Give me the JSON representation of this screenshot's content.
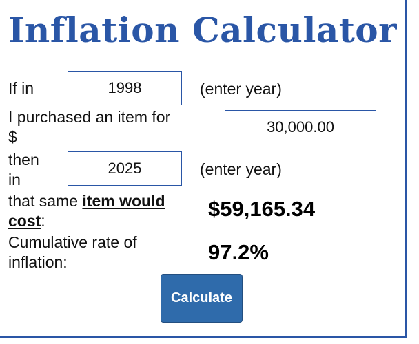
{
  "header": {
    "title": "Inflation Calculator"
  },
  "form": {
    "start_year": {
      "label": "If in",
      "value": "1998",
      "hint": "(enter year)"
    },
    "amount": {
      "label_line1": "I purchased an item for",
      "label_line2": "$",
      "value": "30,000.00"
    },
    "end_year": {
      "label_line1": "then",
      "label_line2": "in",
      "value": "2025",
      "hint": "(enter year)"
    },
    "cost": {
      "label_start": "that same ",
      "label_bold": "item would",
      "label_bold2": "cost",
      "label_end": ":",
      "result": "$59,165.34"
    },
    "rate": {
      "label_line1": "Cumulative rate of",
      "label_line2": "inflation:",
      "result": "97.2%"
    },
    "button": "Calculate"
  }
}
